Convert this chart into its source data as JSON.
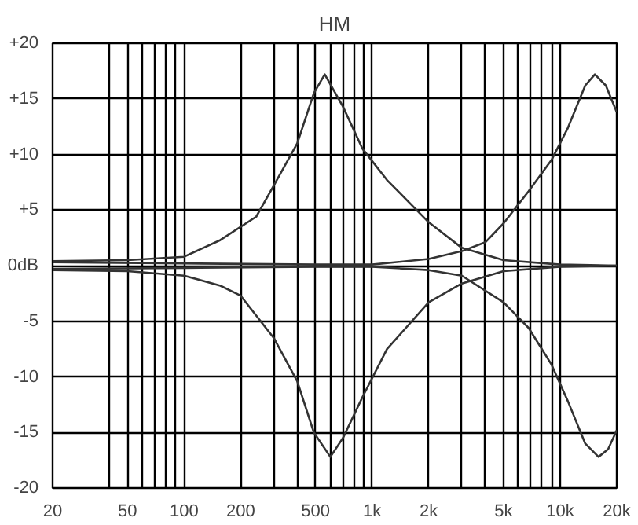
{
  "chart_data": {
    "type": "line",
    "title": "HM",
    "log": "x",
    "grid": true,
    "line_style": "solid",
    "xlim": [
      20,
      20000
    ],
    "ylim": [
      -20,
      20
    ],
    "xticks": [
      20,
      {
        "value": 40,
        "label": null
      },
      50,
      {
        "value": 60,
        "label": null
      },
      {
        "value": 70,
        "label": null
      },
      {
        "value": 80,
        "label": null
      },
      {
        "value": 90,
        "label": null
      },
      100,
      200,
      {
        "value": 300,
        "label": null
      },
      {
        "value": 400,
        "label": null
      },
      500,
      {
        "value": 600,
        "label": null
      },
      {
        "value": 700,
        "label": null
      },
      {
        "value": 800,
        "label": null
      },
      {
        "value": 900,
        "label": null
      },
      {
        "value": 1000,
        "label": "1k"
      },
      {
        "value": 2000,
        "label": "2k"
      },
      {
        "value": 3000,
        "label": null
      },
      {
        "value": 4000,
        "label": null
      },
      {
        "value": 5000,
        "label": "5k"
      },
      {
        "value": 6000,
        "label": null
      },
      {
        "value": 7000,
        "label": null
      },
      {
        "value": 8000,
        "label": null
      },
      {
        "value": 9000,
        "label": null
      },
      {
        "value": 10000,
        "label": "10k"
      },
      {
        "value": 20000,
        "label": "20k"
      }
    ],
    "yticks": [
      {
        "value": 20,
        "label": "+20"
      },
      {
        "value": 15,
        "label": "+15"
      },
      {
        "value": 10,
        "label": "+10"
      },
      {
        "value": 5,
        "label": "+5"
      },
      {
        "value": 0,
        "label": "0dB"
      },
      -5,
      -10,
      -15,
      -20
    ],
    "series": [
      {
        "color": "#333333",
        "x": [
          20,
          50,
          100,
          156,
          242,
          300,
          400,
          490,
          560,
          700,
          890,
          1200,
          2000,
          3000,
          5000,
          10000,
          20000
        ],
        "values": [
          0.4,
          0.5,
          0.8,
          2.3,
          4.4,
          7.2,
          11,
          15.5,
          17.2,
          14.3,
          10.5,
          7.7,
          3.9,
          1.6,
          0.5,
          0.1,
          0
        ]
      },
      {
        "color": "#333333",
        "x": [
          20,
          50,
          100,
          156,
          200,
          300,
          400,
          490,
          600,
          700,
          890,
          1200,
          2000,
          3000,
          5000,
          10000,
          20000
        ],
        "values": [
          -0.4,
          -0.5,
          -0.9,
          -1.8,
          -2.7,
          -6.5,
          -10.4,
          -15,
          -17.2,
          -15.5,
          -11.8,
          -7.5,
          -3.3,
          -1.6,
          -0.5,
          -0.1,
          0
        ]
      },
      {
        "color": "#333333",
        "x": [
          20,
          100,
          500,
          1000,
          2000,
          3000,
          4000,
          5000,
          6800,
          9000,
          11000,
          13600,
          15300,
          17500,
          20000
        ],
        "values": [
          0.3,
          0.2,
          0.1,
          0.1,
          0.6,
          1.3,
          2.1,
          3.8,
          6.7,
          9.5,
          12.4,
          16.2,
          17.2,
          16.2,
          13.8
        ]
      },
      {
        "color": "#333333",
        "x": [
          20,
          100,
          500,
          1000,
          2000,
          3000,
          5000,
          6800,
          9000,
          11000,
          13600,
          16000,
          18000,
          20000
        ],
        "values": [
          -0.3,
          -0.2,
          -0.1,
          -0.1,
          -0.4,
          -0.9,
          -3.3,
          -5.6,
          -8.9,
          -12.2,
          -16,
          -17.2,
          -16.5,
          -14.8
        ]
      }
    ]
  }
}
